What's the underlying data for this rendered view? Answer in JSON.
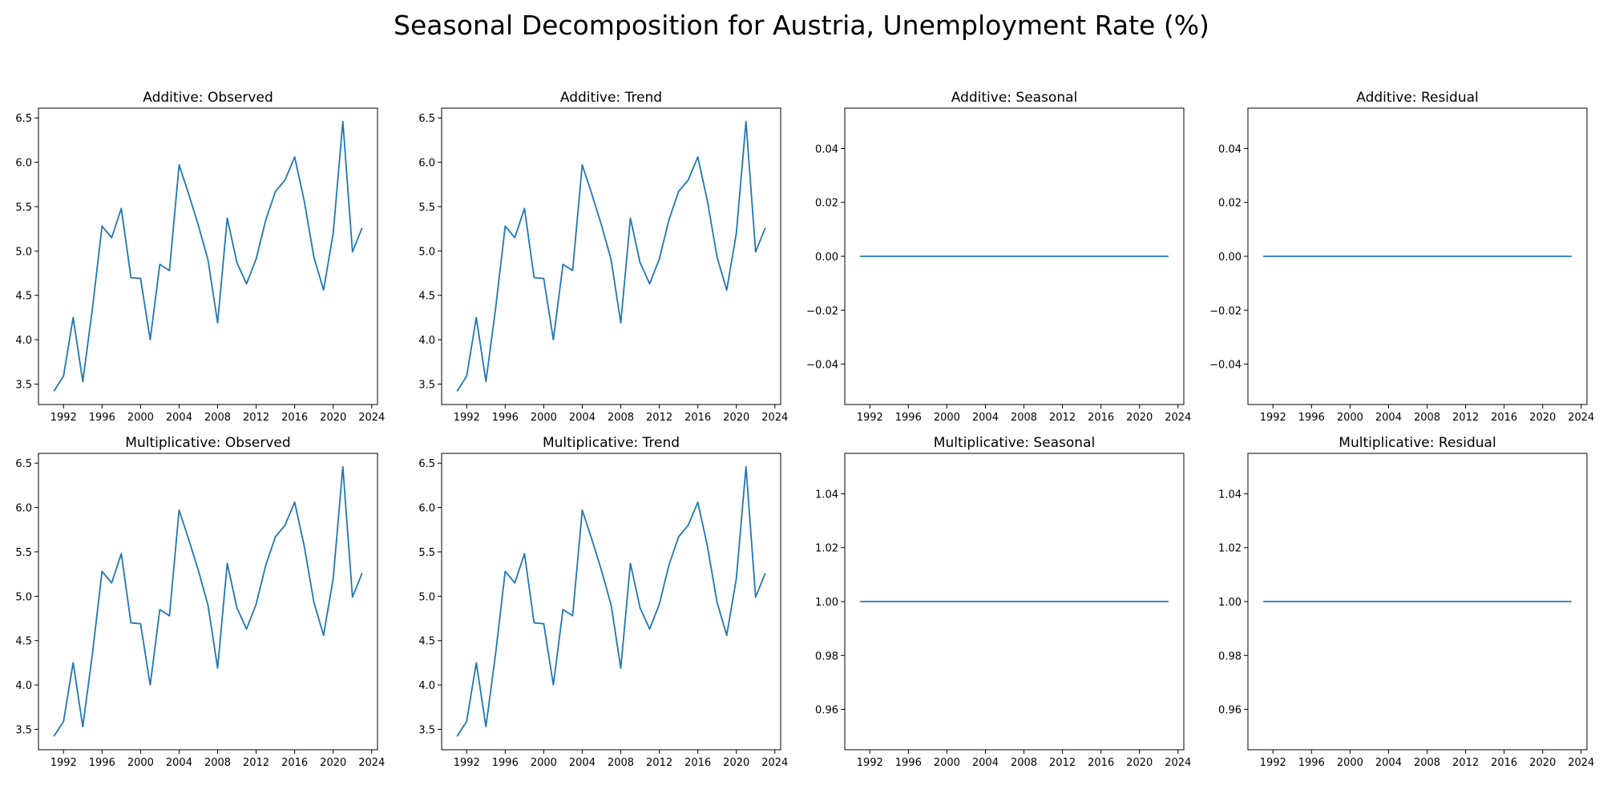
{
  "figure": {
    "title": "Seasonal Decomposition for Austria, Unemployment Rate (%)"
  },
  "chart_data": [
    {
      "type": "line",
      "title": "Additive: Observed",
      "x": [
        1991,
        1992,
        1993,
        1994,
        1995,
        1996,
        1997,
        1998,
        1999,
        2000,
        2001,
        2002,
        2003,
        2004,
        2005,
        2006,
        2007,
        2008,
        2009,
        2010,
        2011,
        2012,
        2013,
        2014,
        2015,
        2016,
        2017,
        2018,
        2019,
        2020,
        2021,
        2022,
        2023
      ],
      "series": [
        {
          "values": [
            3.42,
            3.59,
            4.25,
            3.53,
            4.35,
            5.28,
            5.15,
            5.48,
            4.7,
            4.69,
            4.0,
            4.85,
            4.78,
            5.97,
            5.64,
            5.29,
            4.9,
            4.19,
            5.37,
            4.87,
            4.63,
            4.91,
            5.35,
            5.67,
            5.8,
            6.06,
            5.56,
            4.93,
            4.56,
            5.2,
            6.46,
            4.99,
            5.26
          ]
        }
      ],
      "xticks": [
        1992,
        1996,
        2000,
        2004,
        2008,
        2012,
        2016,
        2020,
        2024
      ],
      "yticks": [
        "3.5",
        "4.0",
        "4.5",
        "5.0",
        "5.5",
        "6.0",
        "6.5"
      ],
      "xlim": [
        1989.4,
        2024.6
      ],
      "ylim": [
        3.27,
        6.61
      ],
      "color": "#1f77b4"
    },
    {
      "type": "line",
      "title": "Additive: Trend",
      "x": [
        1991,
        1992,
        1993,
        1994,
        1995,
        1996,
        1997,
        1998,
        1999,
        2000,
        2001,
        2002,
        2003,
        2004,
        2005,
        2006,
        2007,
        2008,
        2009,
        2010,
        2011,
        2012,
        2013,
        2014,
        2015,
        2016,
        2017,
        2018,
        2019,
        2020,
        2021,
        2022,
        2023
      ],
      "series": [
        {
          "values": [
            3.42,
            3.59,
            4.25,
            3.53,
            4.35,
            5.28,
            5.15,
            5.48,
            4.7,
            4.69,
            4.0,
            4.85,
            4.78,
            5.97,
            5.64,
            5.29,
            4.9,
            4.19,
            5.37,
            4.87,
            4.63,
            4.91,
            5.35,
            5.67,
            5.8,
            6.06,
            5.56,
            4.93,
            4.56,
            5.2,
            6.46,
            4.99,
            5.26
          ]
        }
      ],
      "xticks": [
        1992,
        1996,
        2000,
        2004,
        2008,
        2012,
        2016,
        2020,
        2024
      ],
      "yticks": [
        "3.5",
        "4.0",
        "4.5",
        "5.0",
        "5.5",
        "6.0",
        "6.5"
      ],
      "xlim": [
        1989.4,
        2024.6
      ],
      "ylim": [
        3.27,
        6.61
      ],
      "color": "#1f77b4"
    },
    {
      "type": "line",
      "title": "Additive: Seasonal",
      "x": [
        1991,
        2023
      ],
      "series": [
        {
          "values": [
            0.0,
            0.0
          ]
        }
      ],
      "xticks": [
        1992,
        1996,
        2000,
        2004,
        2008,
        2012,
        2016,
        2020,
        2024
      ],
      "yticks": [
        "0.04",
        "0.02",
        "0.00",
        "−0.02",
        "−0.04"
      ],
      "ytick_values": [
        0.04,
        0.02,
        0.0,
        -0.02,
        -0.04
      ],
      "xlim": [
        1989.4,
        2024.6
      ],
      "ylim": [
        -0.055,
        0.055
      ],
      "color": "#1f77b4"
    },
    {
      "type": "line",
      "title": "Additive: Residual",
      "x": [
        1991,
        2023
      ],
      "series": [
        {
          "values": [
            0.0,
            0.0
          ]
        }
      ],
      "xticks": [
        1992,
        1996,
        2000,
        2004,
        2008,
        2012,
        2016,
        2020,
        2024
      ],
      "yticks": [
        "0.04",
        "0.02",
        "0.00",
        "−0.02",
        "−0.04"
      ],
      "ytick_values": [
        0.04,
        0.02,
        0.0,
        -0.02,
        -0.04
      ],
      "xlim": [
        1989.4,
        2024.6
      ],
      "ylim": [
        -0.055,
        0.055
      ],
      "color": "#1f77b4"
    },
    {
      "type": "line",
      "title": "Multiplicative: Observed",
      "x": [
        1991,
        1992,
        1993,
        1994,
        1995,
        1996,
        1997,
        1998,
        1999,
        2000,
        2001,
        2002,
        2003,
        2004,
        2005,
        2006,
        2007,
        2008,
        2009,
        2010,
        2011,
        2012,
        2013,
        2014,
        2015,
        2016,
        2017,
        2018,
        2019,
        2020,
        2021,
        2022,
        2023
      ],
      "series": [
        {
          "values": [
            3.42,
            3.59,
            4.25,
            3.53,
            4.35,
            5.28,
            5.15,
            5.48,
            4.7,
            4.69,
            4.0,
            4.85,
            4.78,
            5.97,
            5.64,
            5.29,
            4.9,
            4.19,
            5.37,
            4.87,
            4.63,
            4.91,
            5.35,
            5.67,
            5.8,
            6.06,
            5.56,
            4.93,
            4.56,
            5.2,
            6.46,
            4.99,
            5.26
          ]
        }
      ],
      "xticks": [
        1992,
        1996,
        2000,
        2004,
        2008,
        2012,
        2016,
        2020,
        2024
      ],
      "yticks": [
        "3.5",
        "4.0",
        "4.5",
        "5.0",
        "5.5",
        "6.0",
        "6.5"
      ],
      "xlim": [
        1989.4,
        2024.6
      ],
      "ylim": [
        3.27,
        6.61
      ],
      "color": "#1f77b4"
    },
    {
      "type": "line",
      "title": "Multiplicative: Trend",
      "x": [
        1991,
        1992,
        1993,
        1994,
        1995,
        1996,
        1997,
        1998,
        1999,
        2000,
        2001,
        2002,
        2003,
        2004,
        2005,
        2006,
        2007,
        2008,
        2009,
        2010,
        2011,
        2012,
        2013,
        2014,
        2015,
        2016,
        2017,
        2018,
        2019,
        2020,
        2021,
        2022,
        2023
      ],
      "series": [
        {
          "values": [
            3.42,
            3.59,
            4.25,
            3.53,
            4.35,
            5.28,
            5.15,
            5.48,
            4.7,
            4.69,
            4.0,
            4.85,
            4.78,
            5.97,
            5.64,
            5.29,
            4.9,
            4.19,
            5.37,
            4.87,
            4.63,
            4.91,
            5.35,
            5.67,
            5.8,
            6.06,
            5.56,
            4.93,
            4.56,
            5.2,
            6.46,
            4.99,
            5.26
          ]
        }
      ],
      "xticks": [
        1992,
        1996,
        2000,
        2004,
        2008,
        2012,
        2016,
        2020,
        2024
      ],
      "yticks": [
        "3.5",
        "4.0",
        "4.5",
        "5.0",
        "5.5",
        "6.0",
        "6.5"
      ],
      "xlim": [
        1989.4,
        2024.6
      ],
      "ylim": [
        3.27,
        6.61
      ],
      "color": "#1f77b4"
    },
    {
      "type": "line",
      "title": "Multiplicative: Seasonal",
      "x": [
        1991,
        2023
      ],
      "series": [
        {
          "values": [
            1.0,
            1.0
          ]
        }
      ],
      "xticks": [
        1992,
        1996,
        2000,
        2004,
        2008,
        2012,
        2016,
        2020,
        2024
      ],
      "yticks": [
        "1.04",
        "1.02",
        "1.00",
        "0.98",
        "0.96"
      ],
      "ytick_values": [
        1.04,
        1.02,
        1.0,
        0.98,
        0.96
      ],
      "xlim": [
        1989.4,
        2024.6
      ],
      "ylim": [
        0.945,
        1.055
      ],
      "color": "#1f77b4"
    },
    {
      "type": "line",
      "title": "Multiplicative: Residual",
      "x": [
        1991,
        2023
      ],
      "series": [
        {
          "values": [
            1.0,
            1.0
          ]
        }
      ],
      "xticks": [
        1992,
        1996,
        2000,
        2004,
        2008,
        2012,
        2016,
        2020,
        2024
      ],
      "yticks": [
        "1.04",
        "1.02",
        "1.00",
        "0.98",
        "0.96"
      ],
      "ytick_values": [
        1.04,
        1.02,
        1.0,
        0.98,
        0.96
      ],
      "xlim": [
        1989.4,
        2024.6
      ],
      "ylim": [
        0.945,
        1.055
      ],
      "color": "#1f77b4"
    }
  ]
}
